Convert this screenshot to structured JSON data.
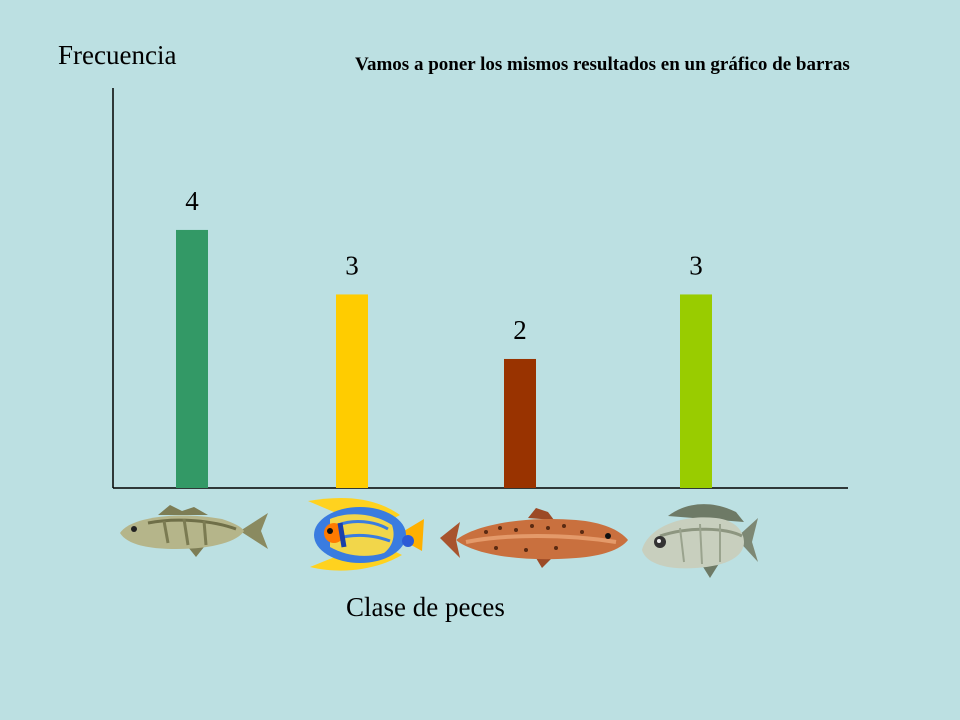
{
  "slide": {
    "background": "#BCE0E2",
    "note": "Vamos a poner los mismos resultados en un gráfico de barras"
  },
  "chart_data": {
    "type": "bar",
    "title": "",
    "ylabel": "Frecuencia",
    "xlabel": "Clase de peces",
    "categories": [
      "lucioperca",
      "pez ángel",
      "trucha",
      "dorada"
    ],
    "category_icons": [
      "zander-fish-icon",
      "angelfish-icon",
      "trout-fish-icon",
      "sea-bream-fish-icon"
    ],
    "values": [
      4,
      3,
      2,
      3
    ],
    "colors": [
      "#339966",
      "#FFCC00",
      "#993300",
      "#99CC00"
    ],
    "ylim": [
      0,
      6.2
    ],
    "grid": false,
    "legend": "none"
  }
}
